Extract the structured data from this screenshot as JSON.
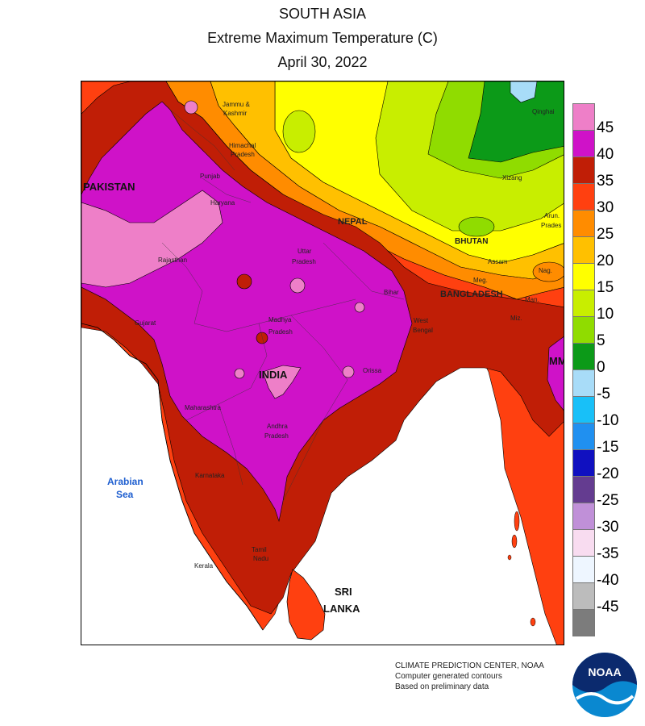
{
  "header": {
    "region": "SOUTH ASIA",
    "variable": "Extreme Maximum Temperature (C)",
    "date": "April 30, 2022"
  },
  "legend": {
    "bins": [
      {
        "label": "45",
        "color": "#ee7fc8"
      },
      {
        "label": "40",
        "color": "#cf12c8"
      },
      {
        "label": "35",
        "color": "#c01e06"
      },
      {
        "label": "30",
        "color": "#ff4010"
      },
      {
        "label": "25",
        "color": "#ff8c00"
      },
      {
        "label": "20",
        "color": "#ffc000"
      },
      {
        "label": "15",
        "color": "#ffff00"
      },
      {
        "label": "10",
        "color": "#c8ee00"
      },
      {
        "label": "5",
        "color": "#90dc00"
      },
      {
        "label": "0",
        "color": "#0c9a18"
      },
      {
        "label": "-5",
        "color": "#a8dcf8"
      },
      {
        "label": "-10",
        "color": "#18c0f8"
      },
      {
        "label": "-15",
        "color": "#2090f0"
      },
      {
        "label": "-20",
        "color": "#1010c0"
      },
      {
        "label": "-25",
        "color": "#643c90"
      },
      {
        "label": "-30",
        "color": "#c090d8"
      },
      {
        "label": "-35",
        "color": "#f8dcf0"
      },
      {
        "label": "-40",
        "color": "#eef6ff"
      },
      {
        "label": "-45",
        "color": "#bcbcbc"
      },
      {
        "label": "",
        "color": "#7c7c7c"
      }
    ]
  },
  "map_labels": {
    "pakistan": "PAKISTAN",
    "india": "INDIA",
    "nepal": "NEPAL",
    "bhutan": "BHUTAN",
    "bangladesh": "BANGLADESH",
    "sri": "SRI",
    "lanka": "LANKA",
    "mm": "MM",
    "arabian": "Arabian",
    "sea": "Sea",
    "jammu1": "Jammu &",
    "jammu2": "Kashmir",
    "himachal1": "Himachal",
    "himachal2": "Pradesh",
    "punjab": "Punjab",
    "haryana": "Haryana",
    "rajasthan": "Rajasthan",
    "gujarat": "Gujarat",
    "uttar1": "Uttar",
    "uttar2": "Pradesh",
    "madhya1": "Madhya",
    "madhya2": "Pradesh",
    "maharashtra": "Maharashtra",
    "andhra1": "Andhra",
    "andhra2": "Pradesh",
    "karnataka": "Karnataka",
    "kerala": "Kerala",
    "tamil1": "Tamil",
    "tamil2": "Nadu",
    "bihar": "Bihar",
    "westbengal1": "West",
    "westbengal2": "Bengal",
    "orissa": "Orissa",
    "qinghai": "Qinghai",
    "xizang": "Xizang",
    "arun1": "Arun.",
    "arun2": "Prades",
    "assam": "Assam",
    "nag": "Nag.",
    "meg": "Meg.",
    "man": "Man.",
    "miz": "Miz."
  },
  "credit": {
    "line1": "CLIMATE PREDICTION CENTER, NOAA",
    "line2": "Computer generated contours",
    "line3": "Based on preliminary data",
    "logo_text": "NOAA"
  }
}
